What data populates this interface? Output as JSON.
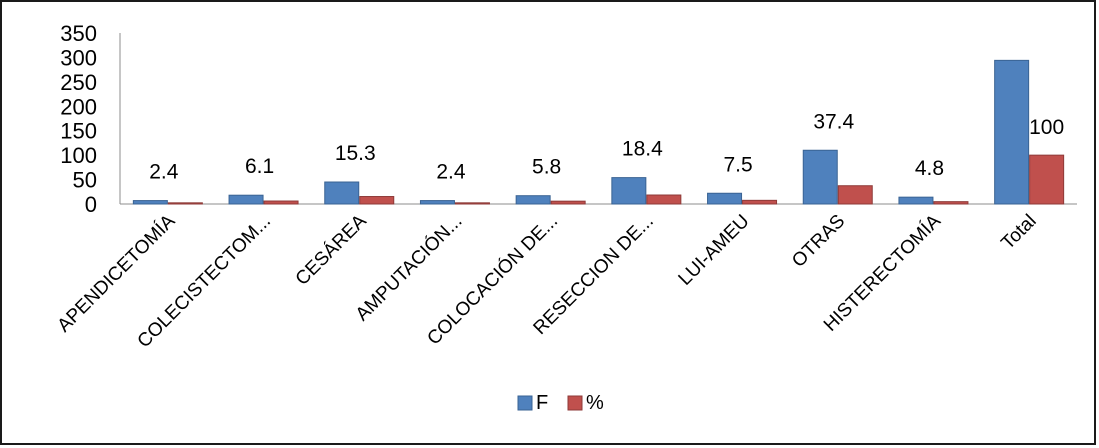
{
  "chart_data": {
    "type": "bar",
    "categories": [
      "APENDICETOMÍA",
      "COLECISTECTOM...",
      "CESÁREA",
      "AMPUTACIÓN...",
      "COLOCACIÓN DE...",
      "RESECCION DE...",
      "LUI-AMEU",
      "OTRAS",
      "HISTERECTOMÍA",
      "Total"
    ],
    "series": [
      {
        "name": "F",
        "color": "#4f81bd",
        "values": [
          7,
          18,
          45,
          7,
          17,
          54,
          22,
          110,
          14,
          294
        ]
      },
      {
        "name": "%",
        "color": "#c0504d",
        "values": [
          2.4,
          6.1,
          15.3,
          2.4,
          5.8,
          18.4,
          7.5,
          37.4,
          4.8,
          100
        ]
      }
    ],
    "data_labels": [
      "2.4",
      "6.1",
      "15.3",
      "2.4",
      "5.8",
      "18.4",
      "7.5",
      "37.4",
      "4.8",
      "100"
    ],
    "ylim": [
      0,
      350
    ],
    "yticks": [
      "0",
      "50",
      "100",
      "150",
      "200",
      "250",
      "300",
      "350"
    ],
    "grid": false,
    "legend_position": "bottom"
  }
}
